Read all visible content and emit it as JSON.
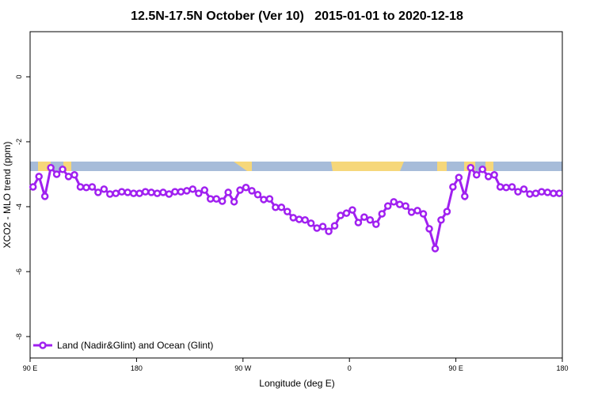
{
  "chart_data": {
    "type": "line",
    "title": "12.5N-17.5N October (Ver 10)   2015-01-01 to 2020-12-18",
    "x_label": "Longitude (deg E)",
    "y_label": "XCO2 - MLO trend (ppm)",
    "xlim": [
      90,
      540
    ],
    "ylim": [
      -8.66,
      1.39
    ],
    "xticks": [
      {
        "value": 90,
        "label": "90 E"
      },
      180,
      {
        "value": 270,
        "label": "90 W"
      },
      {
        "value": 360,
        "label": "0"
      },
      {
        "value": 450,
        "label": "90 E"
      },
      {
        "value": 540,
        "label": "180"
      }
    ],
    "yticks": [
      0,
      -2,
      -4,
      -6,
      -8
    ],
    "legend": "bottom-left",
    "x": [
      92.5,
      97.5,
      102.5,
      107.5,
      112.5,
      117.5,
      122.5,
      127.5,
      132.5,
      137.5,
      142.5,
      147.5,
      152.5,
      157.5,
      162.5,
      167.5,
      172.5,
      177.5,
      182.5,
      187.5,
      192.5,
      197.5,
      202.5,
      207.5,
      212.5,
      217.5,
      222.5,
      227.5,
      232.5,
      237.5,
      242.5,
      247.5,
      252.5,
      257.5,
      262.5,
      267.5,
      272.5,
      277.5,
      282.5,
      287.5,
      292.5,
      297.5,
      302.5,
      307.5,
      312.5,
      317.5,
      322.5,
      327.5,
      332.5,
      337.5,
      342.5,
      347.5,
      352.5,
      357.5,
      362.5,
      367.5,
      372.5,
      377.5,
      382.5,
      387.5,
      392.5,
      397.5,
      402.5,
      407.5,
      412.5,
      417.5,
      422.5,
      427.5,
      432.5,
      437.5,
      442.5,
      447.5,
      452.5,
      457.5,
      462.5,
      467.5,
      472.5,
      477.5,
      482.5,
      487.5,
      492.5,
      497.5,
      502.5,
      507.5,
      512.5,
      517.5,
      522.5,
      527.5,
      532.5,
      537.5
    ],
    "series": [
      {
        "name": "Land (Nadir&Glint) and Ocean (Glint)",
        "color": "#a020f0",
        "values": [
          -3.39,
          -3.07,
          -3.68,
          -2.8,
          -3.0,
          -2.85,
          -3.07,
          -3.02,
          -3.39,
          -3.41,
          -3.39,
          -3.56,
          -3.46,
          -3.61,
          -3.59,
          -3.54,
          -3.56,
          -3.59,
          -3.59,
          -3.54,
          -3.56,
          -3.59,
          -3.56,
          -3.61,
          -3.54,
          -3.54,
          -3.51,
          -3.46,
          -3.59,
          -3.49,
          -3.76,
          -3.76,
          -3.83,
          -3.56,
          -3.85,
          -3.49,
          -3.41,
          -3.51,
          -3.63,
          -3.78,
          -3.76,
          -4.02,
          -4.02,
          -4.15,
          -4.34,
          -4.39,
          -4.41,
          -4.51,
          -4.66,
          -4.61,
          -4.76,
          -4.59,
          -4.27,
          -4.2,
          -4.1,
          -4.49,
          -4.32,
          -4.41,
          -4.54,
          -4.22,
          -3.98,
          -3.85,
          -3.93,
          -3.98,
          -4.17,
          -4.12,
          -4.22,
          -4.68,
          -5.29,
          -4.41,
          -4.15,
          -3.39,
          -3.1,
          -3.68,
          -2.8,
          -3.02,
          -2.85,
          -3.07,
          -3.02,
          -3.39,
          -3.41,
          -3.39,
          -3.54,
          -3.46,
          -3.61,
          -3.59,
          -3.54,
          -3.56,
          -3.59,
          -3.59
        ]
      }
    ]
  }
}
